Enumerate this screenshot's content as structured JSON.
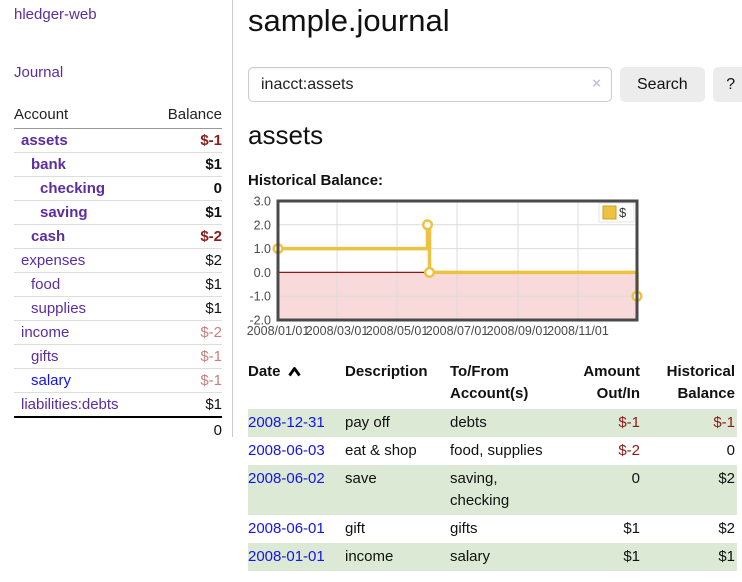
{
  "sidebar": {
    "app_title": "hledger-web",
    "journal_label": "Journal",
    "col_account": "Account",
    "col_balance": "Balance",
    "accounts": [
      {
        "name": "assets",
        "balance": "$-1"
      },
      {
        "name": "bank",
        "balance": "$1"
      },
      {
        "name": "checking",
        "balance": "0"
      },
      {
        "name": "saving",
        "balance": "$1"
      },
      {
        "name": "cash",
        "balance": "$-2"
      },
      {
        "name": "expenses",
        "balance": "$2"
      },
      {
        "name": "food",
        "balance": "$1"
      },
      {
        "name": "supplies",
        "balance": "$1"
      },
      {
        "name": "income",
        "balance": "$-2"
      },
      {
        "name": "gifts",
        "balance": "$-1"
      },
      {
        "name": "salary",
        "balance": "$-1"
      },
      {
        "name": "liabilities:debts",
        "balance": "$1"
      }
    ],
    "total": "0"
  },
  "main": {
    "title": "sample.journal",
    "search": {
      "value": "inacct:assets",
      "clear_icon": "×",
      "button_label": "Search",
      "help_label": "?"
    },
    "account_heading": "assets",
    "chart_label": "Historical Balance:",
    "register": {
      "headers": {
        "date": "Date",
        "description": "Description",
        "tofrom": "To/From Account(s)",
        "amount": "Amount Out/In",
        "balance": "Historical Balance"
      },
      "rows": [
        {
          "date": "2008-12-31",
          "description": "pay off",
          "accounts": "debts",
          "amount": "$-1",
          "balance": "$-1"
        },
        {
          "date": "2008-06-03",
          "description": "eat & shop",
          "accounts": "food, supplies",
          "amount": "$-2",
          "balance": "0"
        },
        {
          "date": "2008-06-02",
          "description": "save",
          "accounts": "saving, checking",
          "amount": "0",
          "balance": "$2"
        },
        {
          "date": "2008-06-01",
          "description": "gift",
          "accounts": "gifts",
          "amount": "$1",
          "balance": "$2"
        },
        {
          "date": "2008-01-01",
          "description": "income",
          "accounts": "salary",
          "amount": "$1",
          "balance": "$1"
        }
      ]
    }
  },
  "colors": {
    "link_purple": "#5b2da1",
    "link_blue": "#1414e8",
    "negative_strong": "#8e1a1a",
    "negative_soft": "#c97f7f",
    "row_stripe_green": "#dbe9d5",
    "chart_gold": "#edc240"
  },
  "chart_data": {
    "type": "line",
    "step": true,
    "title": "Historical Balance",
    "series": [
      {
        "name": "$",
        "color": "#edc240",
        "points": [
          {
            "date": "2008-01-01",
            "value": 1
          },
          {
            "date": "2008-06-01",
            "value": 2
          },
          {
            "date": "2008-06-03",
            "value": 0
          },
          {
            "date": "2008-12-31",
            "value": -1
          }
        ]
      }
    ],
    "x_ticks": [
      {
        "date": "2008-01-01",
        "label": "2008/01/01"
      },
      {
        "date": "2008-03-01",
        "label": "2008/03/01"
      },
      {
        "date": "2008-05-01",
        "label": "2008/05/01"
      },
      {
        "date": "2008-07-01",
        "label": "2008/07/01"
      },
      {
        "date": "2008-09-01",
        "label": "2008/09/01"
      },
      {
        "date": "2008-11-01",
        "label": "2008/11/01"
      }
    ],
    "y_ticks": [
      {
        "value": 3,
        "label": "3.0"
      },
      {
        "value": 2,
        "label": "2.0"
      },
      {
        "value": 1,
        "label": "1.0"
      },
      {
        "value": 0,
        "label": "0.0"
      },
      {
        "value": -1,
        "label": "-1.0"
      },
      {
        "value": -2,
        "label": "-2.0"
      }
    ],
    "ylim": [
      -2,
      3
    ],
    "xlim": [
      "2008-01-01",
      "2008-12-31"
    ],
    "grid": true,
    "legend_position": "top-right",
    "legend": [
      {
        "label": "$",
        "color": "#edc240"
      }
    ],
    "negative_region_color": "#f9dada",
    "zero_line_color": "#8b1a1a",
    "grid_color": "#dcdcdc",
    "border_color": "#4a4a4a",
    "tick_label_color": "#4a4a4a"
  }
}
